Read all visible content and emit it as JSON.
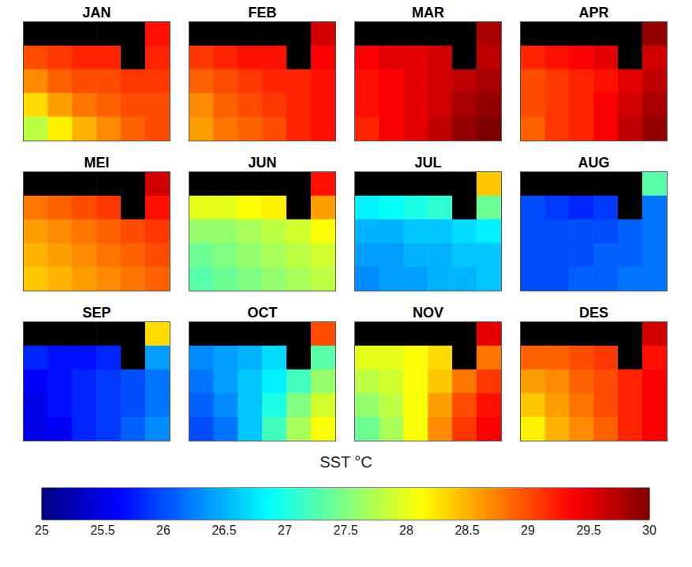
{
  "chart_data": {
    "type": "heatmap",
    "tick_labels": false,
    "panels": [
      {
        "title": "JAN",
        "cells": [
          [
            null,
            null,
            null,
            null,
            null,
            29.3
          ],
          [
            29.0,
            29.1,
            29.2,
            29.2,
            null,
            29.2
          ],
          [
            28.7,
            28.9,
            29.0,
            29.0,
            29.1,
            29.1
          ],
          [
            28.3,
            28.6,
            28.8,
            28.9,
            29.0,
            29.0
          ],
          [
            27.8,
            28.2,
            28.5,
            28.7,
            28.9,
            29.0
          ]
        ]
      },
      {
        "title": "FEB",
        "cells": [
          [
            null,
            null,
            null,
            null,
            null,
            29.6
          ],
          [
            29.1,
            29.2,
            29.3,
            29.3,
            null,
            29.4
          ],
          [
            28.9,
            29.0,
            29.1,
            29.2,
            29.2,
            29.3
          ],
          [
            28.7,
            28.9,
            29.0,
            29.1,
            29.2,
            29.3
          ],
          [
            28.6,
            28.8,
            28.9,
            29.0,
            29.2,
            29.3
          ]
        ]
      },
      {
        "title": "MAR",
        "cells": [
          [
            null,
            null,
            null,
            null,
            null,
            29.8
          ],
          [
            29.4,
            29.5,
            29.5,
            29.6,
            null,
            29.7
          ],
          [
            29.3,
            29.4,
            29.5,
            29.6,
            29.7,
            29.8
          ],
          [
            29.3,
            29.4,
            29.5,
            29.6,
            29.8,
            29.9
          ],
          [
            29.2,
            29.4,
            29.5,
            29.7,
            29.9,
            30.0
          ]
        ]
      },
      {
        "title": "APR",
        "cells": [
          [
            null,
            null,
            null,
            null,
            null,
            29.9
          ],
          [
            29.2,
            29.3,
            29.4,
            29.5,
            null,
            29.6
          ],
          [
            29.0,
            29.1,
            29.2,
            29.3,
            29.5,
            29.7
          ],
          [
            29.0,
            29.1,
            29.2,
            29.4,
            29.6,
            29.8
          ],
          [
            28.9,
            29.1,
            29.2,
            29.4,
            29.7,
            29.9
          ]
        ]
      },
      {
        "title": "MEI",
        "cells": [
          [
            null,
            null,
            null,
            null,
            null,
            29.6
          ],
          [
            28.8,
            28.9,
            29.0,
            29.1,
            null,
            29.3
          ],
          [
            28.6,
            28.7,
            28.8,
            28.9,
            29.0,
            29.1
          ],
          [
            28.5,
            28.6,
            28.7,
            28.8,
            28.9,
            29.0
          ],
          [
            28.4,
            28.5,
            28.6,
            28.7,
            28.8,
            28.9
          ]
        ]
      },
      {
        "title": "JUN",
        "cells": [
          [
            null,
            null,
            null,
            null,
            null,
            29.3
          ],
          [
            28.0,
            28.0,
            28.1,
            28.2,
            null,
            28.6
          ],
          [
            27.6,
            27.6,
            27.7,
            27.8,
            27.9,
            28.1
          ],
          [
            27.4,
            27.5,
            27.6,
            27.7,
            27.8,
            27.9
          ],
          [
            27.3,
            27.4,
            27.5,
            27.6,
            27.7,
            27.8
          ]
        ]
      },
      {
        "title": "JUL",
        "cells": [
          [
            null,
            null,
            null,
            null,
            null,
            28.4
          ],
          [
            26.8,
            26.9,
            27.0,
            27.1,
            null,
            27.4
          ],
          [
            26.5,
            26.5,
            26.6,
            26.6,
            26.7,
            26.8
          ],
          [
            26.4,
            26.4,
            26.5,
            26.5,
            26.6,
            26.6
          ],
          [
            26.3,
            26.4,
            26.4,
            26.5,
            26.5,
            26.6
          ]
        ]
      },
      {
        "title": "AUG",
        "cells": [
          [
            null,
            null,
            null,
            null,
            null,
            27.3
          ],
          [
            26.0,
            25.9,
            25.8,
            25.9,
            null,
            26.2
          ],
          [
            26.0,
            26.0,
            26.0,
            26.0,
            26.1,
            26.2
          ],
          [
            26.0,
            26.0,
            26.0,
            26.1,
            26.1,
            26.2
          ],
          [
            26.0,
            26.0,
            26.1,
            26.1,
            26.2,
            26.2
          ]
        ]
      },
      {
        "title": "SEP",
        "cells": [
          [
            null,
            null,
            null,
            null,
            null,
            28.3
          ],
          [
            25.8,
            25.7,
            25.7,
            25.8,
            null,
            26.4
          ],
          [
            25.6,
            25.7,
            25.8,
            25.9,
            26.0,
            26.2
          ],
          [
            25.5,
            25.7,
            25.8,
            25.9,
            26.0,
            26.2
          ],
          [
            25.5,
            25.6,
            25.8,
            25.9,
            26.1,
            26.3
          ]
        ]
      },
      {
        "title": "OCT",
        "cells": [
          [
            null,
            null,
            null,
            null,
            null,
            29.0
          ],
          [
            26.3,
            26.4,
            26.5,
            26.7,
            null,
            27.3
          ],
          [
            26.2,
            26.4,
            26.6,
            26.8,
            27.2,
            27.6
          ],
          [
            26.1,
            26.3,
            26.6,
            27.0,
            27.5,
            27.9
          ],
          [
            26.0,
            26.2,
            26.6,
            27.2,
            27.7,
            28.1
          ]
        ]
      },
      {
        "title": "NOV",
        "cells": [
          [
            null,
            null,
            null,
            null,
            null,
            29.5
          ],
          [
            28.0,
            28.0,
            28.1,
            28.3,
            null,
            28.8
          ],
          [
            27.8,
            27.9,
            28.1,
            28.4,
            28.8,
            29.1
          ],
          [
            27.6,
            27.8,
            28.1,
            28.6,
            29.0,
            29.3
          ],
          [
            27.4,
            27.7,
            28.1,
            28.7,
            29.1,
            29.4
          ]
        ]
      },
      {
        "title": "DES",
        "cells": [
          [
            null,
            null,
            null,
            null,
            null,
            29.6
          ],
          [
            28.9,
            28.9,
            29.0,
            29.1,
            null,
            29.3
          ],
          [
            28.6,
            28.7,
            28.9,
            29.0,
            29.2,
            29.4
          ],
          [
            28.4,
            28.6,
            28.8,
            29.0,
            29.2,
            29.4
          ],
          [
            28.2,
            28.5,
            28.7,
            28.9,
            29.2,
            29.4
          ]
        ]
      }
    ],
    "colorbar": {
      "label": "SST °C",
      "range": [
        25,
        30
      ],
      "ticks": [
        25,
        25.5,
        26,
        26.5,
        27,
        27.5,
        28,
        28.5,
        29,
        29.5,
        30
      ]
    }
  }
}
